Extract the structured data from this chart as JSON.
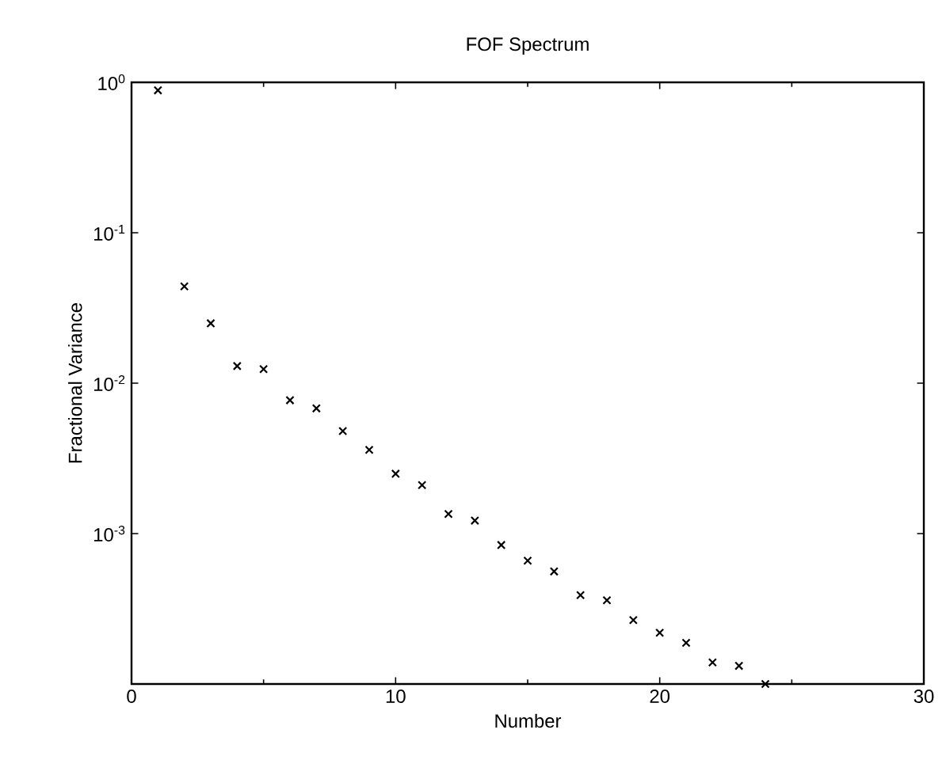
{
  "chart_data": {
    "type": "scatter",
    "title": "FOF Spectrum",
    "xlabel": "Number",
    "ylabel": "Fractional Variance",
    "x": [
      1,
      2,
      3,
      4,
      5,
      6,
      7,
      8,
      9,
      10,
      11,
      12,
      13,
      14,
      15,
      16,
      17,
      18,
      19,
      20,
      21,
      22,
      23,
      24
    ],
    "series": [
      {
        "color": "#000000",
        "values": [
          0.885,
          0.044,
          0.025,
          0.013,
          0.0124,
          0.0077,
          0.0068,
          0.0048,
          0.0036,
          0.0025,
          0.0021,
          0.00135,
          0.00122,
          0.00084,
          0.00066,
          0.00056,
          0.00039,
          0.00036,
          0.000266,
          0.000219,
          0.000188,
          0.000139,
          0.000132,
          0.0001
        ]
      }
    ],
    "xlim": [
      0,
      30
    ],
    "xticks": [
      0,
      10,
      20,
      30
    ],
    "ylim": [
      0.0001,
      1
    ],
    "yticks": [
      {
        "value": 1,
        "label": "10$^{0}$"
      },
      {
        "value": 0.1,
        "label": "10$^{-1}$"
      },
      {
        "value": 0.01,
        "label": "10$^{-2}$"
      },
      {
        "value": 0.001,
        "label": "10$^{-3}$"
      },
      {
        "value": 0.0001,
        "label": null
      }
    ],
    "log": "y",
    "grid": false,
    "marker": "cross"
  }
}
